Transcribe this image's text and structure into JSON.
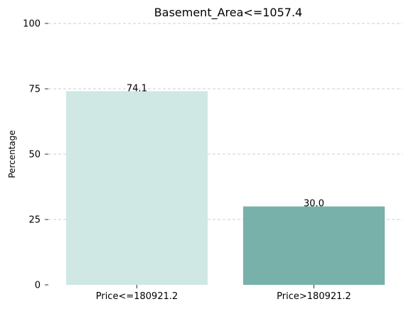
{
  "chart_data": {
    "type": "bar",
    "title": "Basement_Area<=1057.4",
    "xlabel": "",
    "ylabel": "Percentage",
    "categories": [
      "Price<=180921.2",
      "Price>180921.2"
    ],
    "values": [
      74.1,
      30.0
    ],
    "value_labels": [
      "74.1",
      "30.0"
    ],
    "colors": [
      "#cfe8e4",
      "#78b1aa"
    ],
    "ylim": [
      0,
      100
    ],
    "yticks": [
      0,
      25,
      50,
      75,
      100
    ],
    "ytick_labels": [
      "0",
      "25",
      "50",
      "75",
      "100"
    ],
    "grid": true,
    "legend": "none"
  }
}
